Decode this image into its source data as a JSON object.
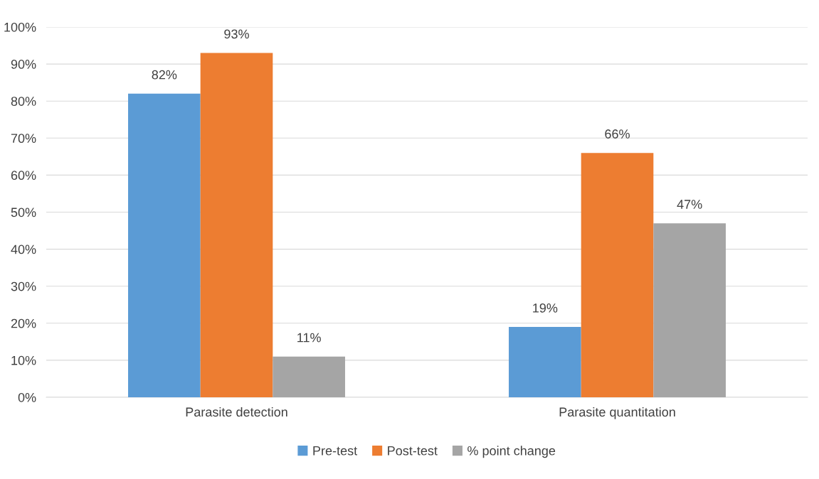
{
  "chart_data": {
    "type": "bar",
    "categories": [
      "Parasite detection",
      "Parasite quantitation"
    ],
    "series": [
      {
        "name": "Pre-test",
        "color": "#5b9bd5",
        "values": [
          82,
          19
        ],
        "value_labels": [
          "82%",
          "19%"
        ]
      },
      {
        "name": "Post-test",
        "color": "#ed7d31",
        "values": [
          93,
          66
        ],
        "value_labels": [
          "93%",
          "66%"
        ]
      },
      {
        "name": "% point change",
        "color": "#a5a5a5",
        "values": [
          11,
          47
        ],
        "value_labels": [
          "11%",
          "47%"
        ]
      }
    ],
    "ylim": [
      0,
      100
    ],
    "yticks": [
      {
        "value": 0,
        "label": "0%"
      },
      {
        "value": 10,
        "label": "10%"
      },
      {
        "value": 20,
        "label": "20%"
      },
      {
        "value": 30,
        "label": "30%"
      },
      {
        "value": 40,
        "label": "40%"
      },
      {
        "value": 50,
        "label": "50%"
      },
      {
        "value": 60,
        "label": "60%"
      },
      {
        "value": 70,
        "label": "70%"
      },
      {
        "value": 80,
        "label": "80%"
      },
      {
        "value": 90,
        "label": "90%"
      },
      {
        "value": 100,
        "label": "100%"
      }
    ],
    "grid": "y",
    "legend": "bottom"
  }
}
